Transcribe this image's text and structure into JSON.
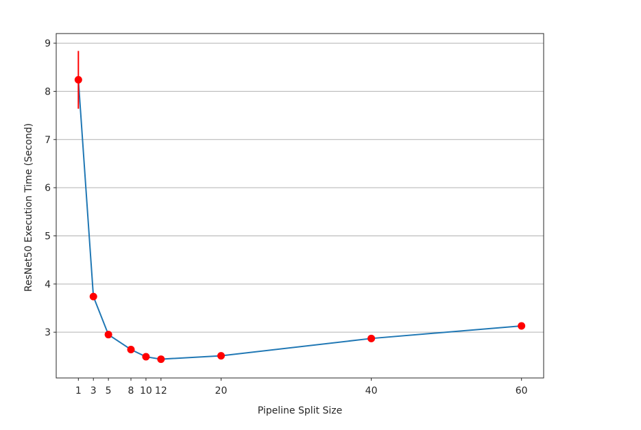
{
  "chart_data": {
    "type": "line",
    "title": "",
    "xlabel": "Pipeline Split Size",
    "ylabel": "ResNet50 Execution Time (Second)",
    "xlim": [
      -1.95,
      62.95
    ],
    "ylim": [
      2.05,
      9.2
    ],
    "x_ticks": [
      1,
      3,
      5,
      8,
      10,
      12,
      20,
      40,
      60
    ],
    "y_ticks": [
      3,
      4,
      5,
      6,
      7,
      8,
      9
    ],
    "grid": "y-axis only",
    "legend": "none",
    "series": [
      {
        "x": [
          1,
          3,
          5,
          8,
          10,
          12,
          20,
          40,
          60
        ],
        "y": [
          8.24,
          3.74,
          2.95,
          2.64,
          2.49,
          2.44,
          2.51,
          2.87,
          3.13
        ],
        "y_error": [
          0.6,
          0.04,
          0.02,
          0.02,
          0.02,
          0.02,
          0.02,
          0.02,
          0.02
        ],
        "line_color": "#1f77b4",
        "marker_color": "#ff0000",
        "error_bar_color": "#ff0000"
      }
    ]
  }
}
